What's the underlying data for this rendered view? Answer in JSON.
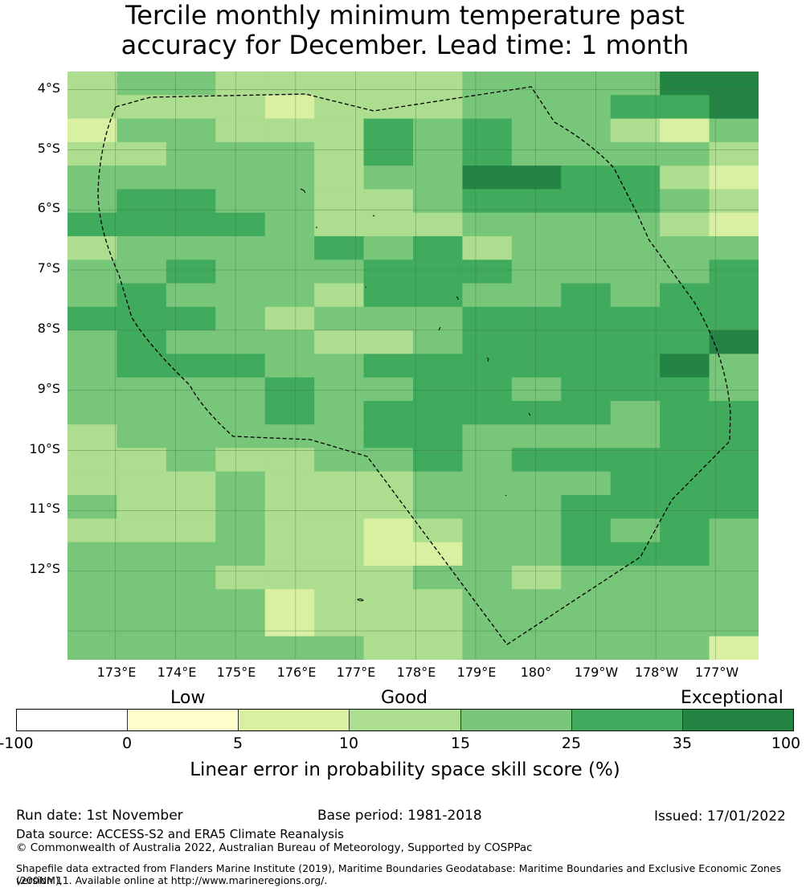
{
  "title": {
    "line1": "Tercile monthly minimum temperature past",
    "line2": "accuracy for December. Lead time: 1 month"
  },
  "map": {
    "latitude_labels": [
      "4°S",
      "5°S",
      "6°S",
      "7°S",
      "8°S",
      "9°S",
      "10°S",
      "11°S",
      "12°S"
    ],
    "longitude_labels": [
      "173°E",
      "174°E",
      "175°E",
      "176°E",
      "177°E",
      "178°E",
      "179°E",
      "180°",
      "179°W",
      "178°W",
      "177°W"
    ],
    "boundary_style": "dashed",
    "grid": true
  },
  "chart_data": {
    "type": "heatmap",
    "title": "Tercile monthly minimum temperature past accuracy for December. Lead time: 1 month",
    "value_unit": "LEPS skill score (%)",
    "lon_range": [
      172.2,
      183.7
    ],
    "lat_range": [
      -3.7,
      -13.5
    ],
    "cell_size_deg": 0.83,
    "class_bins": [
      -100,
      0,
      5,
      10,
      15,
      25,
      35,
      100
    ],
    "class_colors": [
      "#ffffff",
      "#ffffcc",
      "#d9f0a3",
      "#addd8e",
      "#78c679",
      "#41ab5d",
      "#238443"
    ],
    "grid_classes": [
      "34433333444466",
      "33332333444556",
      "24433354544324",
      "33444354544443",
      "44444344665532",
      "45544334555543",
      "55554333444432",
      "34444545344444",
      "44544455544445",
      "45444355445455",
      "55543444555555",
      "45444334555556",
      "45554455555564",
      "44445445545554",
      "44445455555455",
      "34444455444455",
      "33433445455555",
      "33343334444555",
      "43343334445555",
      "33343323445454",
      "44443322445554",
      "44433334434444",
      "44442333444444",
      "44442333444444",
      "44444433444442"
    ],
    "colorbar": {
      "ticks": [
        "-100",
        "0",
        "5",
        "10",
        "15",
        "25",
        "35",
        "100"
      ],
      "categories": [
        "Low",
        "Good",
        "Exceptional"
      ],
      "label": "Linear error in probability space skill score (%)"
    }
  },
  "footer": {
    "run_date": "Run date: 1st November",
    "base_period": "Base period: 1981-2018",
    "issued": "Issued: 17/01/2022",
    "data_source": "Data source: ACCESS-S2 and ERA5 Climate Reanalysis",
    "copyright": "© Commonwealth of Australia 2022, Australian Bureau of Meteorology, Supported by COSPPac",
    "shapefile_line1": "Shapefile data extracted from Flanders Marine Institute (2019), Maritime Boundaries Geodatabase: Maritime Boundaries and Exclusive Economic Zones (200NM),",
    "shapefile_line2": "version 11. Available online at http://www.marineregions.org/."
  }
}
